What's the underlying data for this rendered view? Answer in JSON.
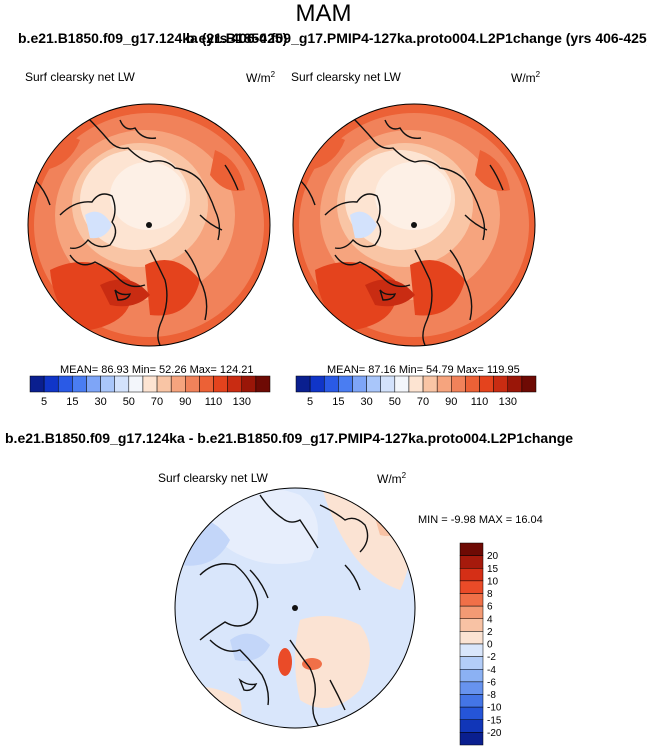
{
  "title": "MAM",
  "header_left": "b.e21.B1850.f09_g17.124ka (yrs 406-425)",
  "header_right": "b.e21.B1850.f09_g17.PMIP4-127ka.proto004.L2P1change (yrs 406-425)",
  "diff_title": "b.e21.B1850.f09_g17.124ka - b.e21.B1850.f09_g17.PMIP4-127ka.proto004.L2P1change",
  "chart_data": [
    {
      "type": "heatmap",
      "projection": "north-polar-stereographic",
      "title": "b.e21.B1850.f09_g17.124ka (yrs 406-425)",
      "variable": "Surf clearsky net LW",
      "units_base": "W/m",
      "units_exp": "2",
      "stats_text": "MEAN=  86.93  Min=  52.26  Max= 124.21",
      "mean": 86.93,
      "min": 52.26,
      "max": 124.21,
      "colorbar_levels": [
        "5",
        "15",
        "30",
        "50",
        "70",
        "90",
        "110",
        "130"
      ],
      "colorbar_colors": [
        "#0a1f8f",
        "#1035c8",
        "#2a5ae6",
        "#4a7df2",
        "#7ea5f7",
        "#a9c6fa",
        "#d3e2fc",
        "#f3f6fb",
        "#fde4d2",
        "#f9c5a5",
        "#f6a47e",
        "#f1825a",
        "#ec6136",
        "#e4431d",
        "#c92c12",
        "#9a1608",
        "#6e0a04"
      ]
    },
    {
      "type": "heatmap",
      "projection": "north-polar-stereographic",
      "title": "b.e21.B1850.f09_g17.PMIP4-127ka.proto004.L2P1change (yrs 406-425)",
      "variable": "Surf clearsky net LW",
      "units_base": "W/m",
      "units_exp": "2",
      "stats_text": "MEAN=  87.16  Min=  54.79  Max= 119.95",
      "mean": 87.16,
      "min": 54.79,
      "max": 119.95,
      "colorbar_levels": [
        "5",
        "15",
        "30",
        "50",
        "70",
        "90",
        "110",
        "130"
      ],
      "colorbar_colors": [
        "#0a1f8f",
        "#1035c8",
        "#2a5ae6",
        "#4a7df2",
        "#7ea5f7",
        "#a9c6fa",
        "#d3e2fc",
        "#f3f6fb",
        "#fde4d2",
        "#f9c5a5",
        "#f6a47e",
        "#f1825a",
        "#ec6136",
        "#e4431d",
        "#c92c12",
        "#9a1608",
        "#6e0a04"
      ]
    },
    {
      "type": "heatmap",
      "projection": "north-polar-stereographic",
      "title": "b.e21.B1850.f09_g17.124ka - b.e21.B1850.f09_g17.PMIP4-127ka.proto004.L2P1change",
      "variable": "Surf clearsky net LW",
      "units_base": "W/m",
      "units_exp": "2",
      "stats_text": "MIN =  -9.98 MAX =  16.04",
      "min": -9.98,
      "max": 16.04,
      "colorbar_levels": [
        "20",
        "15",
        "10",
        "8",
        "6",
        "4",
        "2",
        "0",
        "-2",
        "-4",
        "-6",
        "-8",
        "-10",
        "-15",
        "-20"
      ],
      "colorbar_colors": [
        "#6e0a04",
        "#a61a0c",
        "#d52f16",
        "#ea4b28",
        "#f07048",
        "#f39a74",
        "#f8c2a4",
        "#fbe3d3",
        "#d9e6fb",
        "#b3cdf8",
        "#8bb1f3",
        "#6793ee",
        "#4475e6",
        "#2555d8",
        "#1136b8",
        "#0a1f8f"
      ]
    }
  ]
}
